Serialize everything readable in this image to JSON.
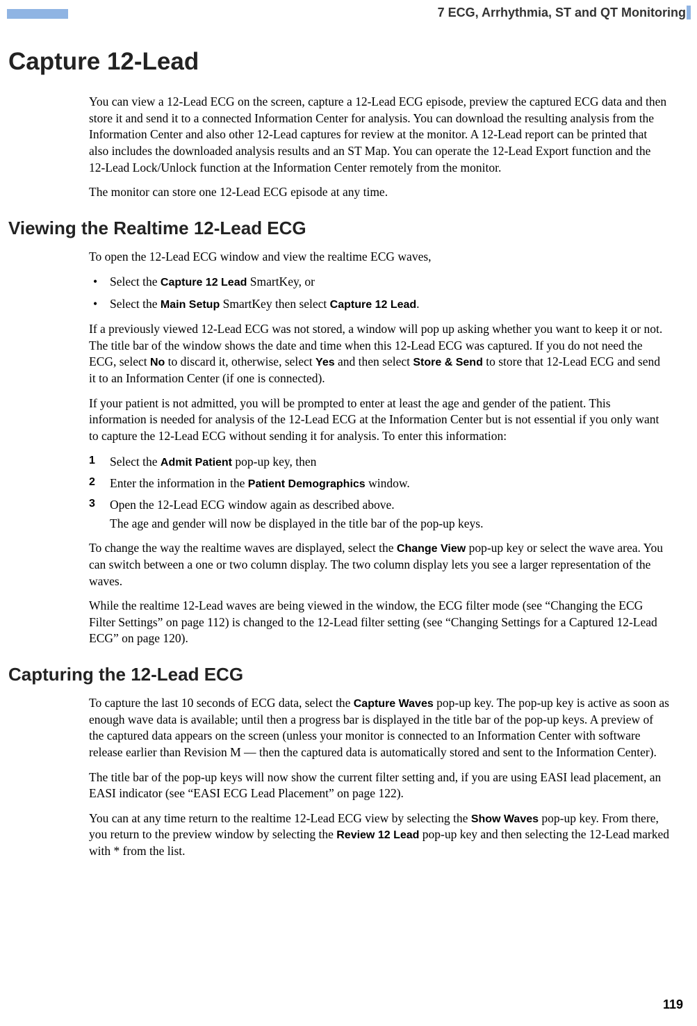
{
  "header": {
    "chapter_label": "7  ECG, Arrhythmia, ST and QT Monitoring",
    "bar_color": "#8fb4e3"
  },
  "h1": "Capture 12-Lead",
  "intro_p1": "You can view a 12-Lead ECG on the screen, capture a 12-Lead ECG episode, preview the captured ECG data and then store it and send it to a connected Information Center for analysis. You can download the resulting analysis from the Information Center and also other 12-Lead captures for review at the monitor. A 12-Lead report can be printed that also includes the downloaded analysis results and an ST Map. You can operate the 12-Lead Export function and the 12-Lead Lock/Unlock function at the Information Center remotely from the monitor.",
  "intro_p2": "The monitor can store one 12-Lead ECG episode at any time.",
  "h2a": "Viewing the Realtime 12-Lead ECG",
  "sec_a_intro": "To open the 12-Lead ECG window and view the realtime ECG waves,",
  "bullet1_a": "Select the ",
  "bullet1_b": "Capture 12 Lead",
  "bullet1_c": " SmartKey, or",
  "bullet2_a": "Select the ",
  "bullet2_b": "Main Setup",
  "bullet2_c": " SmartKey then select ",
  "bullet2_d": "Capture 12 Lead",
  "bullet2_e": ".",
  "sec_a_p2_a": "If a previously viewed 12-Lead ECG was not stored, a window will pop up asking whether you want to keep it or not. The title bar of the window shows the date and time when this 12-Lead ECG was captured. If you do not need the ECG, select ",
  "sec_a_p2_b": "No",
  "sec_a_p2_c": " to discard it, otherwise, select ",
  "sec_a_p2_d": "Yes",
  "sec_a_p2_e": " and then select ",
  "sec_a_p2_f": "Store & Send",
  "sec_a_p2_g": " to store that 12-Lead ECG and send it to an Information Center (if one is connected).",
  "sec_a_p3": "If your patient is not admitted, you will be prompted to enter at least the age and gender of the patient. This information is needed for analysis of the 12-Lead ECG at the Information Center but is not essential if you only want to capture the 12-Lead ECG without sending it for analysis. To enter this information:",
  "step1_num": "1",
  "step1_a": "Select the ",
  "step1_b": "Admit Patient",
  "step1_c": " pop-up key, then",
  "step2_num": "2",
  "step2_a": "Enter the information in the ",
  "step2_b": "Patient Demographics",
  "step2_c": " window.",
  "step3_num": "3",
  "step3_a": "Open the 12-Lead ECG window again as described above.",
  "step3_sub": "The age and gender will now be displayed in the title bar of the pop-up keys.",
  "sec_a_p4_a": "To change the way the realtime waves are displayed, select the ",
  "sec_a_p4_b": "Change View",
  "sec_a_p4_c": " pop-up key or select the wave area. You can switch between a one or two column display. The two column display lets you see a larger representation of the waves.",
  "sec_a_p5": "While the realtime 12-Lead waves are being viewed in the window, the ECG filter mode (see “Changing the ECG Filter Settings” on page 112) is changed to the 12-Lead filter setting (see “Changing Settings for a Captured 12-Lead ECG” on page 120).",
  "h2b": "Capturing the 12-Lead ECG",
  "sec_b_p1_a": "To capture the last 10 seconds of ECG data, select the ",
  "sec_b_p1_b": "Capture Waves",
  "sec_b_p1_c": " pop-up key. The pop-up key is active as soon as enough wave data is available; until then a progress bar is displayed in the title bar of the pop-up keys. A preview of the captured data appears on the screen (unless your monitor is connected to an Information Center with software release earlier than Revision M — then the captured data is automatically stored and sent to the Information Center).",
  "sec_b_p2": "The title bar of the pop-up keys will now show the current filter setting and, if you are using EASI lead placement, an EASI indicator (see “EASI ECG Lead Placement” on page 122).",
  "sec_b_p3_a": "You can at any time return to the realtime 12-Lead ECG view by selecting the ",
  "sec_b_p3_b": "Show Waves",
  "sec_b_p3_c": " pop-up key. From there, you return to the preview window by selecting the ",
  "sec_b_p3_d": "Review 12 Lead",
  "sec_b_p3_e": " pop-up key and then selecting the 12-Lead marked with * from the list.",
  "page_number": "119"
}
